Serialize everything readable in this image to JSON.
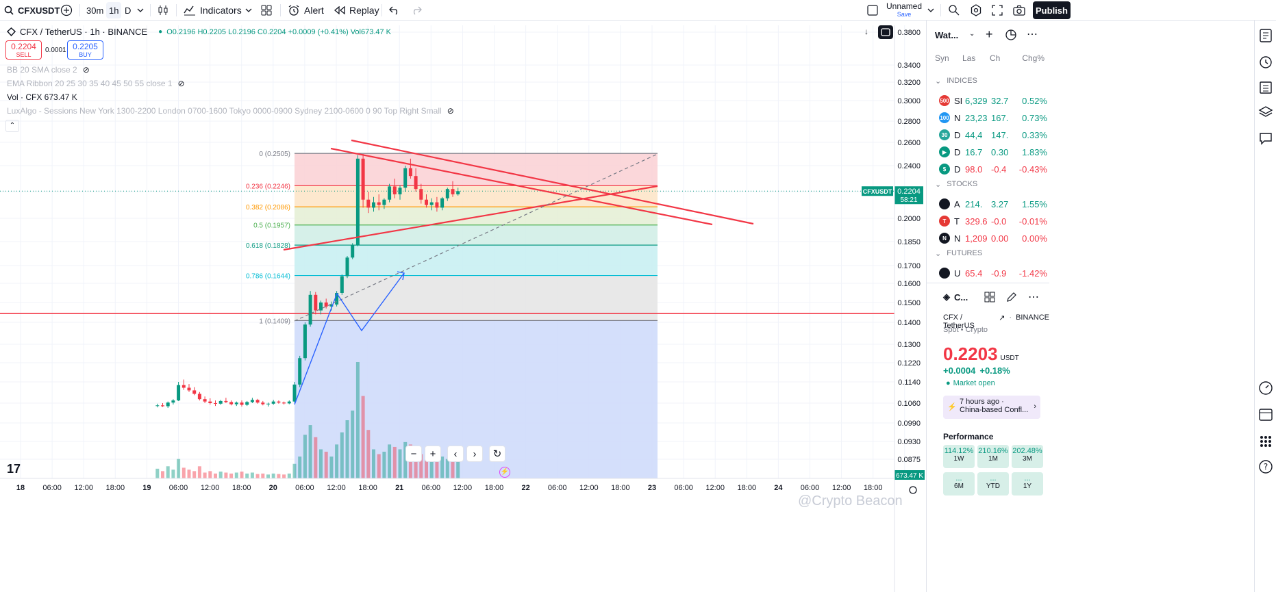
{
  "topbar": {
    "symbol": "CFXUSDT",
    "intervals": [
      "30m",
      "1h",
      "D"
    ],
    "indicators_label": "Indicators",
    "alert_label": "Alert",
    "replay_label": "Replay",
    "layout_name": "Unnamed",
    "layout_status": "Save",
    "publish_label": "Publish"
  },
  "legend": {
    "title": "CFX / TetherUS · 1h · BINANCE",
    "ohlc": "O0.2196  H0.2205  L0.2196  C0.2204  +0.0009 (+0.41%)  Vol673.47 K",
    "sell_price": "0.2204",
    "sell_label": "SELL",
    "spread": "0.0001",
    "buy_price": "0.2205",
    "buy_label": "BUY",
    "indicators": [
      "BB 20 SMA close 2",
      "EMA Ribbon 20 25 30 35 40 45 50 55 close 1",
      "Vol · CFX  673.47 K",
      "LuxAlgo - Sessions New York 1300-2200 London 0700-1600 Tokyo 0000-0900 Sydney 2100-0600 0 90 Top Right Small"
    ]
  },
  "chart_data": {
    "type": "candlestick",
    "symbol": "CFX / TetherUS · 1h · BINANCE",
    "y_axis_labels": [
      "0.3800",
      "0.3400",
      "0.3200",
      "0.3000",
      "0.2800",
      "0.2600",
      "0.2400",
      "0.2200",
      "0.2000",
      "0.1850",
      "0.1700",
      "0.1600",
      "0.1500",
      "0.1400",
      "0.1300",
      "0.1220",
      "0.1140",
      "0.1060",
      "0.0990",
      "0.0930",
      "0.0875"
    ],
    "x_axis_labels": [
      "18",
      "06:00",
      "12:00",
      "18:00",
      "19",
      "06:00",
      "12:00",
      "18:00",
      "20",
      "06:00",
      "12:00",
      "18:00",
      "21",
      "06:00",
      "12:00",
      "18:00",
      "22",
      "06:00",
      "12:00",
      "18:00",
      "23",
      "06:00",
      "12:00",
      "18:00",
      "24",
      "06:00",
      "12:00",
      "18:00"
    ],
    "price_tag": {
      "label": "CFXUSDT",
      "price": "0.2204",
      "countdown": "58:21"
    },
    "volume_tag": "673.47 K",
    "fib_levels": [
      {
        "label": "0 (0.2505)",
        "price": 0.2505,
        "color": "#787b86"
      },
      {
        "label": "0.236 (0.2246)",
        "price": 0.2246,
        "color": "#f23645"
      },
      {
        "label": "0.382 (0.2086)",
        "price": 0.2086,
        "color": "#ff9800"
      },
      {
        "label": "0.5 (0.1957)",
        "price": 0.1957,
        "color": "#4caf50"
      },
      {
        "label": "0.618 (0.1828)",
        "price": 0.1828,
        "color": "#089981"
      },
      {
        "label": "0.786 (0.1644)",
        "price": 0.1644,
        "color": "#00bcd4"
      },
      {
        "label": "1 (0.1409)",
        "price": 0.1409,
        "color": "#787b86"
      }
    ],
    "horizontal_line": 0.1445,
    "candles_approx": [
      [
        0.105,
        0.1058,
        0.1045,
        0.1052
      ],
      [
        0.1052,
        0.106,
        0.1046,
        0.1049
      ],
      [
        0.1049,
        0.1066,
        0.1043,
        0.1062
      ],
      [
        0.1062,
        0.1075,
        0.1055,
        0.107
      ],
      [
        0.107,
        0.114,
        0.1068,
        0.1128
      ],
      [
        0.1128,
        0.115,
        0.111,
        0.1118
      ],
      [
        0.1118,
        0.1132,
        0.1102,
        0.1108
      ],
      [
        0.1108,
        0.112,
        0.109,
        0.1095
      ],
      [
        0.1095,
        0.1102,
        0.107,
        0.1075
      ],
      [
        0.1075,
        0.1085,
        0.106,
        0.1066
      ],
      [
        0.1066,
        0.1078,
        0.1055,
        0.106
      ],
      [
        0.106,
        0.107,
        0.105,
        0.1058
      ],
      [
        0.1058,
        0.1072,
        0.1054,
        0.1068
      ],
      [
        0.1068,
        0.108,
        0.106,
        0.1064
      ],
      [
        0.1064,
        0.107,
        0.1052,
        0.1056
      ],
      [
        0.1056,
        0.1066,
        0.105,
        0.1062
      ],
      [
        0.1062,
        0.107,
        0.1048,
        0.1054
      ],
      [
        0.1054,
        0.1068,
        0.105,
        0.1064
      ],
      [
        0.1064,
        0.108,
        0.106,
        0.1072
      ],
      [
        0.1072,
        0.1076,
        0.1058,
        0.1062
      ],
      [
        0.1062,
        0.1068,
        0.1052,
        0.1056
      ],
      [
        0.1056,
        0.1062,
        0.1048,
        0.1058
      ],
      [
        0.1058,
        0.1072,
        0.1054,
        0.1066
      ],
      [
        0.1066,
        0.107,
        0.1058,
        0.1062
      ],
      [
        0.1062,
        0.1066,
        0.1055,
        0.1059
      ],
      [
        0.1059,
        0.107,
        0.1056,
        0.1066
      ],
      [
        0.1066,
        0.114,
        0.1062,
        0.113
      ],
      [
        0.113,
        0.125,
        0.112,
        0.124
      ],
      [
        0.124,
        0.14,
        0.123,
        0.139
      ],
      [
        0.139,
        0.156,
        0.138,
        0.154
      ],
      [
        0.154,
        0.1555,
        0.144,
        0.146
      ],
      [
        0.146,
        0.151,
        0.144,
        0.15
      ],
      [
        0.15,
        0.152,
        0.147,
        0.148
      ],
      [
        0.148,
        0.1505,
        0.146,
        0.149
      ],
      [
        0.149,
        0.156,
        0.148,
        0.155
      ],
      [
        0.155,
        0.165,
        0.154,
        0.164
      ],
      [
        0.164,
        0.176,
        0.163,
        0.175
      ],
      [
        0.175,
        0.184,
        0.174,
        0.183
      ],
      [
        0.183,
        0.249,
        0.182,
        0.246
      ],
      [
        0.246,
        0.25,
        0.208,
        0.214
      ],
      [
        0.214,
        0.22,
        0.204,
        0.208
      ],
      [
        0.208,
        0.216,
        0.205,
        0.212
      ],
      [
        0.212,
        0.218,
        0.206,
        0.21
      ],
      [
        0.21,
        0.215,
        0.207,
        0.214
      ],
      [
        0.214,
        0.226,
        0.212,
        0.224
      ],
      [
        0.224,
        0.23,
        0.215,
        0.218
      ],
      [
        0.218,
        0.225,
        0.214,
        0.223
      ],
      [
        0.223,
        0.24,
        0.22,
        0.238
      ],
      [
        0.238,
        0.246,
        0.23,
        0.232
      ],
      [
        0.232,
        0.238,
        0.22,
        0.222
      ],
      [
        0.222,
        0.226,
        0.211,
        0.214
      ],
      [
        0.214,
        0.218,
        0.208,
        0.21
      ],
      [
        0.21,
        0.215,
        0.206,
        0.212
      ],
      [
        0.212,
        0.216,
        0.205,
        0.208
      ],
      [
        0.208,
        0.216,
        0.206,
        0.215
      ],
      [
        0.215,
        0.223,
        0.213,
        0.222
      ],
      [
        0.222,
        0.228,
        0.216,
        0.218
      ],
      [
        0.218,
        0.223,
        0.217,
        0.2204
      ]
    ],
    "volumes_approx": [
      20,
      15,
      25,
      18,
      40,
      22,
      18,
      15,
      25,
      12,
      15,
      10,
      14,
      12,
      10,
      12,
      14,
      10,
      12,
      9,
      10,
      8,
      10,
      9,
      8,
      10,
      30,
      45,
      90,
      110,
      85,
      60,
      55,
      45,
      70,
      95,
      120,
      140,
      240,
      170,
      100,
      60,
      50,
      55,
      70,
      65,
      60,
      75,
      70,
      55,
      50,
      45,
      40,
      35,
      45,
      40,
      50,
      38
    ]
  },
  "sidepanel": {
    "watchlist_title": "Wat...",
    "columns": [
      "Syn",
      "Las",
      "Ch",
      "Chg%"
    ],
    "sections": [
      {
        "title": "INDICES",
        "rows": [
          {
            "badge": "500",
            "badge_color": "#e53935",
            "sym": "SI",
            "last": "6,329",
            "chg": "32.7",
            "pct": "0.52%",
            "up": true
          },
          {
            "badge": "100",
            "badge_color": "#2196f3",
            "sym": "N",
            "last": "23,23",
            "chg": "167.",
            "pct": "0.73%",
            "up": true
          },
          {
            "badge": "30",
            "badge_color": "#26a69a",
            "sym": "D",
            "last": "44,4",
            "chg": "147.",
            "pct": "0.33%",
            "up": true
          },
          {
            "badge": "▶",
            "badge_color": "#089981",
            "sym": "D",
            "last": "16.7",
            "chg": "0.30",
            "pct": "1.83%",
            "up": true
          },
          {
            "badge": "$",
            "badge_color": "#089981",
            "sym": "D",
            "last": "98.0",
            "chg": "-0.4",
            "pct": "-0.43%",
            "up": false
          }
        ]
      },
      {
        "title": "STOCKS",
        "rows": [
          {
            "badge": "",
            "badge_color": "#131722",
            "sym": "A",
            "last": "214.",
            "chg": "3.27",
            "pct": "1.55%",
            "up": true
          },
          {
            "badge": "T",
            "badge_color": "#e53935",
            "sym": "T",
            "last": "329.6",
            "chg": "-0.0",
            "pct": "-0.01%",
            "up": false
          },
          {
            "badge": "N",
            "badge_color": "#131722",
            "sym": "N",
            "last": "1,209",
            "chg": "0.00",
            "pct": "0.00%",
            "up": false
          }
        ]
      },
      {
        "title": "FUTURES",
        "rows": [
          {
            "badge": "",
            "badge_color": "#131722",
            "sym": "U",
            "last": "65.4",
            "chg": "-0.9",
            "pct": "-1.42%",
            "up": false
          }
        ]
      }
    ],
    "detail": {
      "short_name": "C...",
      "name": "CFX / TetherUS",
      "exchange": "BINANCE",
      "type": "Spot • Crypto",
      "price": "0.2203",
      "currency": "USDT",
      "change": "+0.0004",
      "change_pct": "+0.18%",
      "market_status": "Market open",
      "news_time": "7 hours ago ·",
      "news_title": "China-based Confl...",
      "performance_title": "Performance",
      "perf": [
        {
          "value": "114.12%",
          "period": "1W"
        },
        {
          "value": "210.16%",
          "period": "1M"
        },
        {
          "value": "202.48%",
          "period": "3M"
        },
        {
          "value": "...",
          "period": "6M"
        },
        {
          "value": "...",
          "period": "YTD"
        },
        {
          "value": "...",
          "period": "1Y"
        }
      ]
    }
  },
  "watermark": "@Crypto Beacon",
  "colors": {
    "up": "#089981",
    "down": "#f23645",
    "accent": "#2962ff"
  }
}
